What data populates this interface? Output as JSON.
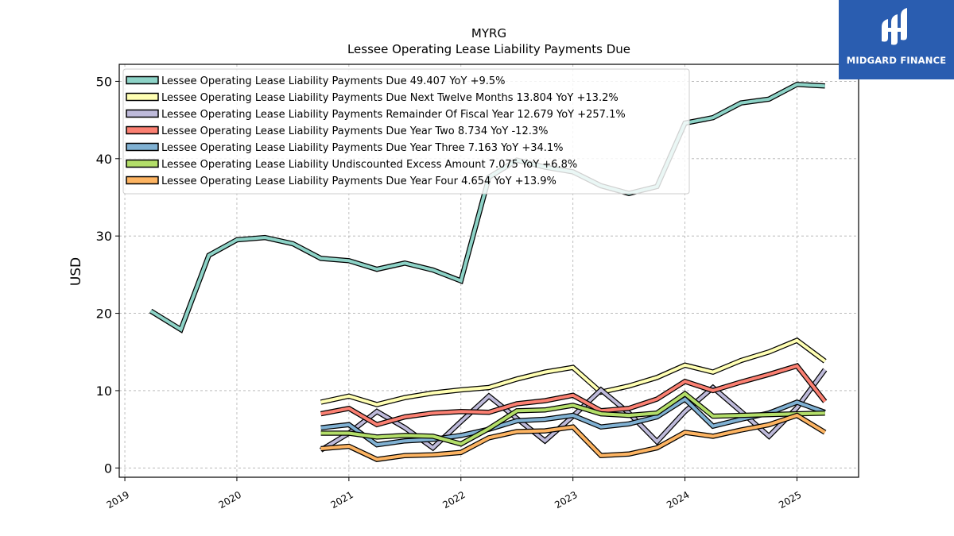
{
  "brand": {
    "name": "MIDGARD FINANCE",
    "color": "#2a5db0"
  },
  "chart_data": {
    "type": "line",
    "title": "MYRG",
    "subtitle": "Lessee Operating Lease Liability Payments Due",
    "xlabel": "",
    "ylabel": "USD",
    "xlim": [
      2018.95,
      2025.55
    ],
    "ylim": [
      -1.2,
      52.2
    ],
    "x_ticks": [
      2019,
      2020,
      2021,
      2022,
      2023,
      2024,
      2025
    ],
    "y_ticks": [
      0,
      10,
      20,
      30,
      40,
      50
    ],
    "grid": true,
    "legend_position": "upper-left",
    "series": [
      {
        "name": "Lessee Operating Lease Liability Payments Due  49.407 YoY +9.5%",
        "color": "#8dd3c7",
        "points": [
          [
            2019.23,
            20.3
          ],
          [
            2019.5,
            17.9
          ],
          [
            2019.75,
            27.5
          ],
          [
            2020.0,
            29.5
          ],
          [
            2020.25,
            29.8
          ],
          [
            2020.5,
            29.0
          ],
          [
            2020.75,
            27.1
          ],
          [
            2021.0,
            26.8
          ],
          [
            2021.25,
            25.7
          ],
          [
            2021.5,
            26.5
          ],
          [
            2021.75,
            25.6
          ],
          [
            2022.0,
            24.2
          ],
          [
            2022.25,
            37.6
          ],
          [
            2022.5,
            39.8
          ],
          [
            2022.75,
            38.9
          ],
          [
            2023.0,
            38.3
          ],
          [
            2023.25,
            36.5
          ],
          [
            2023.5,
            35.5
          ],
          [
            2023.75,
            36.4
          ],
          [
            2024.0,
            44.6
          ],
          [
            2024.25,
            45.3
          ],
          [
            2024.5,
            47.2
          ],
          [
            2024.75,
            47.7
          ],
          [
            2025.0,
            49.6
          ],
          [
            2025.25,
            49.4
          ]
        ]
      },
      {
        "name": "Lessee Operating Lease Liability Payments Due Next Twelve Months  13.804 YoY +13.2%",
        "color": "#ffffb3",
        "points": [
          [
            2020.75,
            8.5
          ],
          [
            2021.0,
            9.3
          ],
          [
            2021.25,
            8.2
          ],
          [
            2021.5,
            9.1
          ],
          [
            2021.75,
            9.7
          ],
          [
            2022.0,
            10.1
          ],
          [
            2022.25,
            10.4
          ],
          [
            2022.5,
            11.5
          ],
          [
            2022.75,
            12.4
          ],
          [
            2023.0,
            13.0
          ],
          [
            2023.25,
            9.8
          ],
          [
            2023.5,
            10.6
          ],
          [
            2023.75,
            11.7
          ],
          [
            2024.0,
            13.3
          ],
          [
            2024.25,
            12.4
          ],
          [
            2024.5,
            13.9
          ],
          [
            2024.75,
            15.0
          ],
          [
            2025.0,
            16.5
          ],
          [
            2025.25,
            13.8
          ]
        ]
      },
      {
        "name": "Lessee Operating Lease Liability Payments Remainder Of Fiscal Year  12.679 YoY +257.1%",
        "color": "#bebada",
        "points": [
          [
            2020.75,
            2.3
          ],
          [
            2021.0,
            4.5
          ],
          [
            2021.25,
            7.3
          ],
          [
            2021.5,
            5.2
          ],
          [
            2021.75,
            2.6
          ],
          [
            2022.0,
            6.0
          ],
          [
            2022.25,
            9.3
          ],
          [
            2022.5,
            6.4
          ],
          [
            2022.75,
            3.5
          ],
          [
            2023.0,
            6.7
          ],
          [
            2023.25,
            10.1
          ],
          [
            2023.5,
            7.1
          ],
          [
            2023.75,
            3.4
          ],
          [
            2024.0,
            7.3
          ],
          [
            2024.25,
            10.4
          ],
          [
            2024.5,
            7.3
          ],
          [
            2024.75,
            4.1
          ],
          [
            2025.0,
            7.8
          ],
          [
            2025.25,
            12.7
          ]
        ]
      },
      {
        "name": "Lessee Operating Lease Liability Payments Due Year Two  8.734 YoY -12.3%",
        "color": "#fb8072",
        "points": [
          [
            2020.75,
            7.0
          ],
          [
            2021.0,
            7.7
          ],
          [
            2021.25,
            5.6
          ],
          [
            2021.5,
            6.6
          ],
          [
            2021.75,
            7.1
          ],
          [
            2022.0,
            7.3
          ],
          [
            2022.25,
            7.2
          ],
          [
            2022.5,
            8.3
          ],
          [
            2022.75,
            8.7
          ],
          [
            2023.0,
            9.4
          ],
          [
            2023.25,
            7.4
          ],
          [
            2023.5,
            7.7
          ],
          [
            2023.75,
            8.9
          ],
          [
            2024.0,
            11.2
          ],
          [
            2024.25,
            10.0
          ],
          [
            2024.5,
            11.1
          ],
          [
            2024.75,
            12.1
          ],
          [
            2025.0,
            13.2
          ],
          [
            2025.25,
            8.6
          ]
        ]
      },
      {
        "name": "Lessee Operating Lease Liability Payments Due Year Three  7.163 YoY +34.1%",
        "color": "#80b1d3",
        "points": [
          [
            2020.75,
            5.2
          ],
          [
            2021.0,
            5.6
          ],
          [
            2021.25,
            3.0
          ],
          [
            2021.5,
            3.5
          ],
          [
            2021.75,
            3.7
          ],
          [
            2022.0,
            4.2
          ],
          [
            2022.25,
            5.0
          ],
          [
            2022.5,
            6.1
          ],
          [
            2022.75,
            6.3
          ],
          [
            2023.0,
            6.8
          ],
          [
            2023.25,
            5.3
          ],
          [
            2023.5,
            5.7
          ],
          [
            2023.75,
            6.6
          ],
          [
            2024.0,
            8.9
          ],
          [
            2024.25,
            5.4
          ],
          [
            2024.5,
            6.3
          ],
          [
            2024.75,
            7.1
          ],
          [
            2025.0,
            8.5
          ],
          [
            2025.25,
            7.2
          ]
        ]
      },
      {
        "name": "Lessee Operating Lease Liability Undiscounted Excess Amount  7.075 YoY +6.8%",
        "color": "#b3de69",
        "points": [
          [
            2020.75,
            4.5
          ],
          [
            2021.0,
            4.5
          ],
          [
            2021.25,
            4.0
          ],
          [
            2021.5,
            4.2
          ],
          [
            2021.75,
            4.1
          ],
          [
            2022.0,
            3.1
          ],
          [
            2022.25,
            5.1
          ],
          [
            2022.5,
            7.4
          ],
          [
            2022.75,
            7.5
          ],
          [
            2023.0,
            8.1
          ],
          [
            2023.25,
            7.0
          ],
          [
            2023.5,
            6.8
          ],
          [
            2023.75,
            7.1
          ],
          [
            2024.0,
            9.6
          ],
          [
            2024.25,
            6.7
          ],
          [
            2024.5,
            6.8
          ],
          [
            2024.75,
            6.9
          ],
          [
            2025.0,
            7.0
          ],
          [
            2025.25,
            7.1
          ]
        ]
      },
      {
        "name": "Lessee Operating Lease Liability Payments Due Year Four  4.654 YoY +13.9%",
        "color": "#fdb462",
        "points": [
          [
            2020.75,
            2.5
          ],
          [
            2021.0,
            2.8
          ],
          [
            2021.25,
            1.1
          ],
          [
            2021.5,
            1.6
          ],
          [
            2021.75,
            1.7
          ],
          [
            2022.0,
            2.0
          ],
          [
            2022.25,
            3.9
          ],
          [
            2022.5,
            4.7
          ],
          [
            2022.75,
            4.8
          ],
          [
            2023.0,
            5.3
          ],
          [
            2023.25,
            1.6
          ],
          [
            2023.5,
            1.8
          ],
          [
            2023.75,
            2.6
          ],
          [
            2024.0,
            4.6
          ],
          [
            2024.25,
            4.1
          ],
          [
            2024.5,
            4.9
          ],
          [
            2024.75,
            5.6
          ],
          [
            2025.0,
            6.8
          ],
          [
            2025.25,
            4.6
          ]
        ]
      }
    ]
  }
}
